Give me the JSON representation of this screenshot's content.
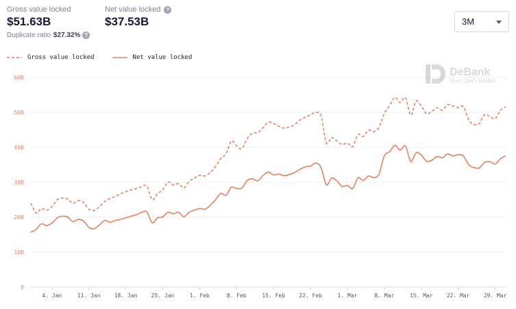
{
  "stats": {
    "gross": {
      "label": "Gross value locked",
      "value": "$51.63B"
    },
    "net": {
      "label": "Net value locked",
      "value": "$37.53B"
    },
    "duplicate": {
      "label": "Duplicate ratio",
      "value": "$27.32%"
    }
  },
  "range_select": {
    "selected": "3M"
  },
  "watermark": {
    "name": "DeBank",
    "tagline": "Your DeFi Wallet"
  },
  "colors": {
    "line": "#e0805e",
    "axis_text": "#e0805e",
    "xtick_text": "#555555",
    "grid": "#eeeeee"
  },
  "icons": {
    "help": "help-circle-icon",
    "dropdown": "chevron-down-icon",
    "logo": "debank-logo-icon"
  },
  "chart_data": {
    "type": "line",
    "title": "",
    "xlabel": "",
    "ylabel": "",
    "ylim": [
      0,
      60
    ],
    "y_ticks": [
      0,
      10,
      20,
      30,
      40,
      50,
      60
    ],
    "y_tick_labels": [
      "0",
      "10B",
      "20B",
      "30B",
      "40B",
      "50B",
      "60B"
    ],
    "x_range": [
      "2020-12-31",
      "2021-03-31"
    ],
    "x_tick_dates": [
      "2021-01-04",
      "2021-01-11",
      "2021-01-18",
      "2021-01-25",
      "2021-02-01",
      "2021-02-08",
      "2021-02-15",
      "2021-02-22",
      "2021-03-01",
      "2021-03-08",
      "2021-03-15",
      "2021-03-22",
      "2021-03-29"
    ],
    "x_tick_labels": [
      "4. Jan",
      "11. Jan",
      "18. Jan",
      "25. Jan",
      "1. Feb",
      "8. Feb",
      "15. Feb",
      "22. Feb",
      "1. Mar",
      "8. Mar",
      "15. Mar",
      "22. Mar",
      "29. Mar"
    ],
    "grid": true,
    "legend_position": "top-left",
    "series": [
      {
        "name": "Gross value locked",
        "style": "dashed",
        "points": [
          [
            "2020-12-31",
            24.0
          ],
          [
            "2021-01-01",
            21.2
          ],
          [
            "2021-01-02",
            22.5
          ],
          [
            "2021-01-03",
            22.0
          ],
          [
            "2021-01-04",
            23.0
          ],
          [
            "2021-01-05",
            25.0
          ],
          [
            "2021-01-06",
            25.5
          ],
          [
            "2021-01-07",
            25.2
          ],
          [
            "2021-01-08",
            24.0
          ],
          [
            "2021-01-09",
            24.8
          ],
          [
            "2021-01-10",
            24.2
          ],
          [
            "2021-01-11",
            22.3
          ],
          [
            "2021-01-12",
            21.9
          ],
          [
            "2021-01-13",
            23.0
          ],
          [
            "2021-01-14",
            24.5
          ],
          [
            "2021-01-15",
            25.3
          ],
          [
            "2021-01-16",
            26.0
          ],
          [
            "2021-01-17",
            26.7
          ],
          [
            "2021-01-18",
            27.3
          ],
          [
            "2021-01-19",
            27.8
          ],
          [
            "2021-01-20",
            28.2
          ],
          [
            "2021-01-21",
            28.7
          ],
          [
            "2021-01-22",
            28.9
          ],
          [
            "2021-01-23",
            25.0
          ],
          [
            "2021-01-24",
            26.8
          ],
          [
            "2021-01-25",
            27.8
          ],
          [
            "2021-01-26",
            30.1
          ],
          [
            "2021-01-27",
            29.2
          ],
          [
            "2021-01-28",
            29.6
          ],
          [
            "2021-01-29",
            28.4
          ],
          [
            "2021-01-30",
            30.2
          ],
          [
            "2021-01-31",
            31.2
          ],
          [
            "2021-02-01",
            32.0
          ],
          [
            "2021-02-02",
            31.8
          ],
          [
            "2021-02-03",
            32.8
          ],
          [
            "2021-02-04",
            34.5
          ],
          [
            "2021-02-05",
            36.8
          ],
          [
            "2021-02-06",
            38.2
          ],
          [
            "2021-02-07",
            41.8
          ],
          [
            "2021-02-08",
            40.4
          ],
          [
            "2021-02-09",
            39.6
          ],
          [
            "2021-02-10",
            42.5
          ],
          [
            "2021-02-11",
            44.0
          ],
          [
            "2021-02-12",
            44.2
          ],
          [
            "2021-02-13",
            45.6
          ],
          [
            "2021-02-14",
            47.2
          ],
          [
            "2021-02-15",
            46.8
          ],
          [
            "2021-02-16",
            46.0
          ],
          [
            "2021-02-17",
            45.5
          ],
          [
            "2021-02-18",
            45.8
          ],
          [
            "2021-02-19",
            46.5
          ],
          [
            "2021-02-20",
            47.8
          ],
          [
            "2021-02-21",
            48.6
          ],
          [
            "2021-02-22",
            49.3
          ],
          [
            "2021-02-23",
            50.0
          ],
          [
            "2021-02-24",
            49.0
          ],
          [
            "2021-02-25",
            41.3
          ],
          [
            "2021-02-26",
            42.8
          ],
          [
            "2021-02-27",
            41.8
          ],
          [
            "2021-02-28",
            40.8
          ],
          [
            "2021-03-01",
            41.2
          ],
          [
            "2021-03-02",
            40.2
          ],
          [
            "2021-03-03",
            43.6
          ],
          [
            "2021-03-04",
            43.1
          ],
          [
            "2021-03-05",
            44.9
          ],
          [
            "2021-03-06",
            44.5
          ],
          [
            "2021-03-07",
            45.8
          ],
          [
            "2021-03-08",
            49.7
          ],
          [
            "2021-03-09",
            52.0
          ],
          [
            "2021-03-10",
            54.3
          ],
          [
            "2021-03-11",
            52.8
          ],
          [
            "2021-03-12",
            54.2
          ],
          [
            "2021-03-13",
            49.2
          ],
          [
            "2021-03-14",
            53.2
          ],
          [
            "2021-03-15",
            51.8
          ],
          [
            "2021-03-16",
            49.6
          ],
          [
            "2021-03-17",
            50.3
          ],
          [
            "2021-03-18",
            51.3
          ],
          [
            "2021-03-19",
            50.6
          ],
          [
            "2021-03-20",
            52.2
          ],
          [
            "2021-03-21",
            51.8
          ],
          [
            "2021-03-22",
            51.4
          ],
          [
            "2021-03-23",
            51.6
          ],
          [
            "2021-03-24",
            47.8
          ],
          [
            "2021-03-25",
            46.5
          ],
          [
            "2021-03-26",
            46.8
          ],
          [
            "2021-03-27",
            49.4
          ],
          [
            "2021-03-28",
            48.8
          ],
          [
            "2021-03-29",
            48.2
          ],
          [
            "2021-03-30",
            50.6
          ],
          [
            "2021-03-31",
            51.6
          ]
        ]
      },
      {
        "name": "Net value locked",
        "style": "solid",
        "points": [
          [
            "2020-12-31",
            15.7
          ],
          [
            "2021-01-01",
            16.5
          ],
          [
            "2021-01-02",
            18.1
          ],
          [
            "2021-01-03",
            17.6
          ],
          [
            "2021-01-04",
            18.3
          ],
          [
            "2021-01-05",
            19.8
          ],
          [
            "2021-01-06",
            20.3
          ],
          [
            "2021-01-07",
            20.0
          ],
          [
            "2021-01-08",
            18.7
          ],
          [
            "2021-01-09",
            19.4
          ],
          [
            "2021-01-10",
            18.9
          ],
          [
            "2021-01-11",
            17.1
          ],
          [
            "2021-01-12",
            16.7
          ],
          [
            "2021-01-13",
            17.8
          ],
          [
            "2021-01-14",
            19.1
          ],
          [
            "2021-01-15",
            18.5
          ],
          [
            "2021-01-16",
            19.1
          ],
          [
            "2021-01-17",
            19.4
          ],
          [
            "2021-01-18",
            19.8
          ],
          [
            "2021-01-19",
            20.3
          ],
          [
            "2021-01-20",
            20.7
          ],
          [
            "2021-01-21",
            21.4
          ],
          [
            "2021-01-22",
            21.5
          ],
          [
            "2021-01-23",
            18.4
          ],
          [
            "2021-01-24",
            19.8
          ],
          [
            "2021-01-25",
            20.1
          ],
          [
            "2021-01-26",
            21.4
          ],
          [
            "2021-01-27",
            21.0
          ],
          [
            "2021-01-28",
            21.4
          ],
          [
            "2021-01-29",
            20.1
          ],
          [
            "2021-01-30",
            21.4
          ],
          [
            "2021-01-31",
            22.0
          ],
          [
            "2021-02-01",
            22.5
          ],
          [
            "2021-02-02",
            22.3
          ],
          [
            "2021-02-03",
            23.4
          ],
          [
            "2021-02-04",
            25.0
          ],
          [
            "2021-02-05",
            26.8
          ],
          [
            "2021-02-06",
            26.3
          ],
          [
            "2021-02-07",
            28.6
          ],
          [
            "2021-02-08",
            28.2
          ],
          [
            "2021-02-09",
            28.3
          ],
          [
            "2021-02-10",
            30.5
          ],
          [
            "2021-02-11",
            31.0
          ],
          [
            "2021-02-12",
            30.4
          ],
          [
            "2021-02-13",
            31.9
          ],
          [
            "2021-02-14",
            32.9
          ],
          [
            "2021-02-15",
            32.1
          ],
          [
            "2021-02-16",
            32.3
          ],
          [
            "2021-02-17",
            31.9
          ],
          [
            "2021-02-18",
            32.2
          ],
          [
            "2021-02-19",
            32.8
          ],
          [
            "2021-02-20",
            33.7
          ],
          [
            "2021-02-21",
            34.4
          ],
          [
            "2021-02-22",
            34.6
          ],
          [
            "2021-02-23",
            35.5
          ],
          [
            "2021-02-24",
            34.2
          ],
          [
            "2021-02-25",
            29.3
          ],
          [
            "2021-02-26",
            31.2
          ],
          [
            "2021-02-27",
            30.4
          ],
          [
            "2021-02-28",
            28.8
          ],
          [
            "2021-03-01",
            29.1
          ],
          [
            "2021-03-02",
            28.2
          ],
          [
            "2021-03-03",
            31.3
          ],
          [
            "2021-03-04",
            30.5
          ],
          [
            "2021-03-05",
            31.8
          ],
          [
            "2021-03-06",
            31.3
          ],
          [
            "2021-03-07",
            32.4
          ],
          [
            "2021-03-08",
            37.6
          ],
          [
            "2021-03-09",
            38.7
          ],
          [
            "2021-03-10",
            40.6
          ],
          [
            "2021-03-11",
            39.2
          ],
          [
            "2021-03-12",
            40.4
          ],
          [
            "2021-03-13",
            35.9
          ],
          [
            "2021-03-14",
            38.4
          ],
          [
            "2021-03-15",
            37.8
          ],
          [
            "2021-03-16",
            36.0
          ],
          [
            "2021-03-17",
            36.3
          ],
          [
            "2021-03-18",
            37.4
          ],
          [
            "2021-03-19",
            37.0
          ],
          [
            "2021-03-20",
            38.1
          ],
          [
            "2021-03-21",
            37.5
          ],
          [
            "2021-03-22",
            37.9
          ],
          [
            "2021-03-23",
            37.5
          ],
          [
            "2021-03-24",
            35.0
          ],
          [
            "2021-03-25",
            34.2
          ],
          [
            "2021-03-26",
            34.1
          ],
          [
            "2021-03-27",
            35.7
          ],
          [
            "2021-03-28",
            35.9
          ],
          [
            "2021-03-29",
            35.2
          ],
          [
            "2021-03-30",
            36.7
          ],
          [
            "2021-03-31",
            37.6
          ]
        ]
      }
    ]
  }
}
